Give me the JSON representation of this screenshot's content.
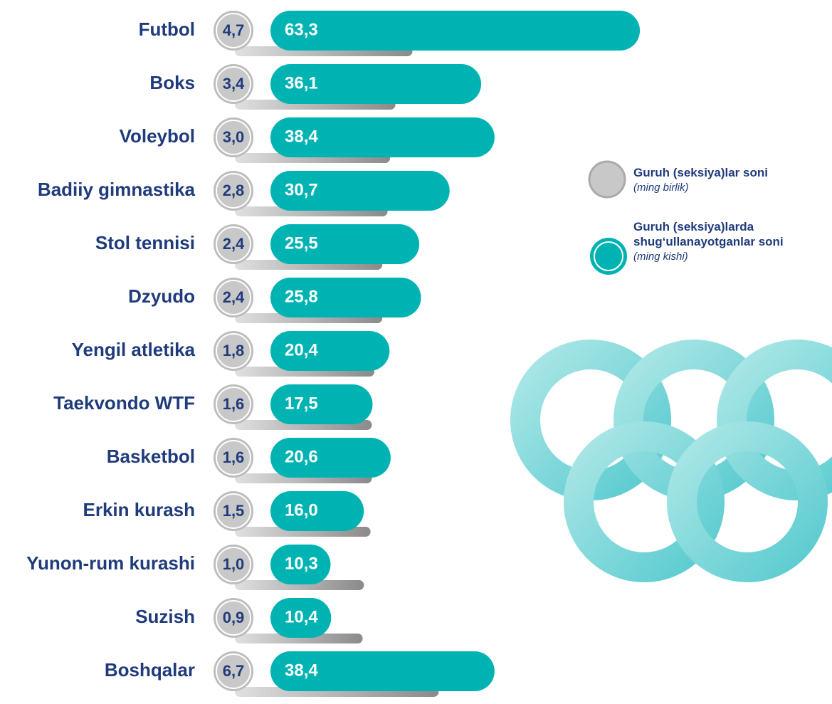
{
  "chart_data": {
    "type": "bar",
    "orientation": "horizontal",
    "categories": [
      "Futbol",
      "Boks",
      "Voleybol",
      "Badiiy gimnastika",
      "Stol tennisi",
      "Dzyudo",
      "Yengil atletika",
      "Taekvondo WTF",
      "Basketbol",
      "Erkin kurash",
      "Yunon-rum kurashi",
      "Suzish",
      "Boshqalar"
    ],
    "series": [
      {
        "name": "Guruh (seksiya)lar soni",
        "unit": "(ming birlik)",
        "color": "#c8c8c8",
        "values": [
          4.7,
          3.4,
          3.0,
          2.8,
          2.4,
          2.4,
          1.8,
          1.6,
          1.6,
          1.5,
          1.0,
          0.9,
          6.7
        ],
        "value_labels": [
          "4,7",
          "3,4",
          "3,0",
          "2,8",
          "2,4",
          "2,4",
          "1,8",
          "1,6",
          "1,6",
          "1,5",
          "1,0",
          "0,9",
          "6,7"
        ]
      },
      {
        "name": "Guruh (seksiya)larda shug‘ullanayotganlar soni",
        "unit": "(ming kishi)",
        "color": "#00b3b3",
        "values": [
          63.3,
          36.1,
          38.4,
          30.7,
          25.5,
          25.8,
          20.4,
          17.5,
          20.6,
          16.0,
          10.3,
          10.4,
          38.4
        ],
        "value_labels": [
          "63,3",
          "36,1",
          "38,4",
          "30,7",
          "25,5",
          "25,8",
          "20,4",
          "17,5",
          "20,6",
          "16,0",
          "10,3",
          "10,4",
          "38,4"
        ]
      }
    ]
  }
}
